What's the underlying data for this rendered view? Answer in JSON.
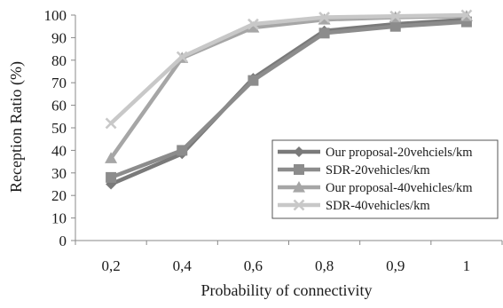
{
  "chart_data": {
    "type": "line",
    "categories": [
      "0,2",
      "0,4",
      "0,6",
      "0,8",
      "0,9",
      "1"
    ],
    "xlabel": "Probability of connectivity",
    "ylabel": "Reception Ratio (%)",
    "ylim": [
      0,
      100
    ],
    "yticks": [
      "0",
      "10",
      "20",
      "30",
      "40",
      "50",
      "60",
      "70",
      "80",
      "90",
      "100"
    ],
    "grid": false,
    "legend_position": "bottom-right",
    "series": [
      {
        "name": "Our proposal-20vehciels/km",
        "marker": "diamond",
        "color": "#7a7a7a",
        "values": [
          25,
          38.5,
          72,
          93,
          96,
          98
        ]
      },
      {
        "name": "SDR-20vehicles/km",
        "marker": "square",
        "color": "#8c8c8c",
        "values": [
          28,
          40,
          71,
          92,
          95,
          97
        ]
      },
      {
        "name": "Our proposal-40vehicles/km",
        "marker": "triangle",
        "color": "#a6a6a6",
        "values": [
          36.5,
          81,
          94.5,
          98,
          99,
          99.5
        ]
      },
      {
        "name": "SDR-40vehicles/km",
        "marker": "x",
        "color": "#c8c8c8",
        "values": [
          52,
          81.5,
          96,
          99,
          99.5,
          100
        ]
      }
    ]
  }
}
